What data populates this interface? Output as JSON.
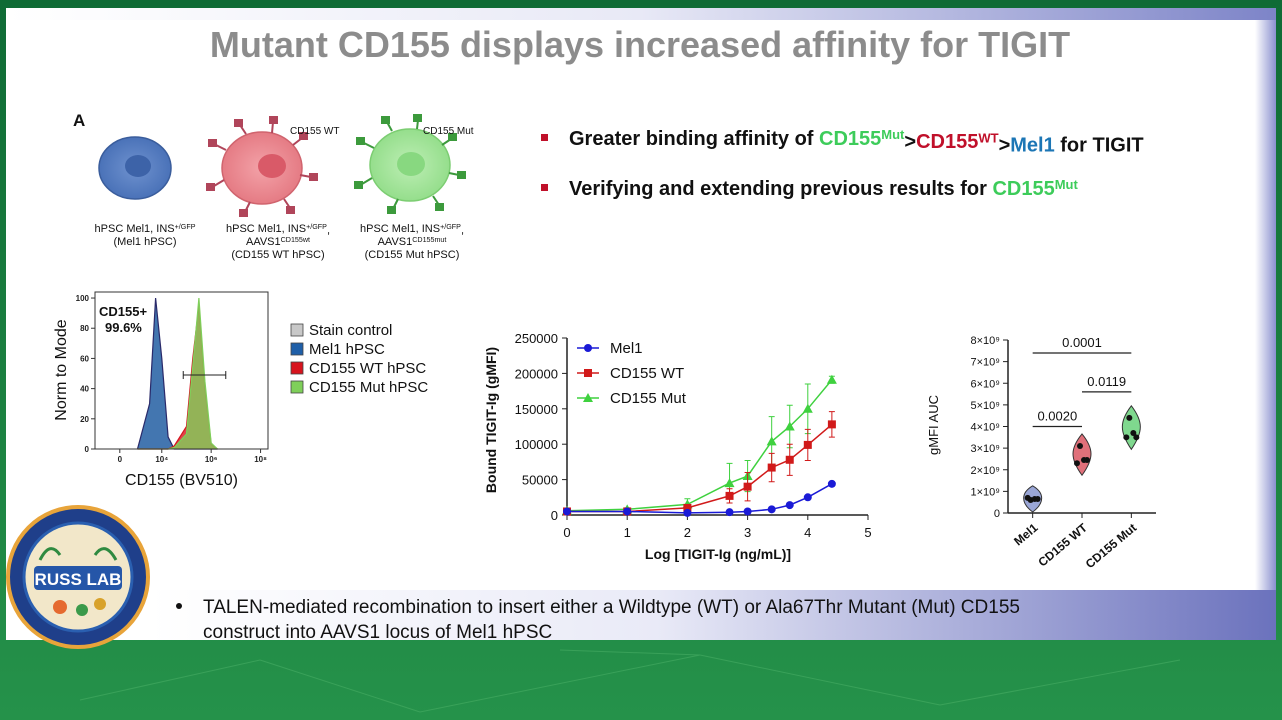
{
  "slide": {
    "title": "Mutant CD155 displays increased affinity for TIGIT",
    "panel_label": "A",
    "cells": [
      {
        "lines": [
          [
            {
              "text": "hPSC Mel1, INS"
            },
            {
              "text": "+/GFP",
              "sup": true
            }
          ],
          [
            {
              "text": "(Mel1 hPSC)"
            }
          ]
        ]
      },
      {
        "callout": "CD155 WT",
        "lines": [
          [
            {
              "text": "hPSC Mel1, INS"
            },
            {
              "text": "+/GFP",
              "sup": true
            },
            {
              "text": ","
            }
          ],
          [
            {
              "text": "AAVS1"
            },
            {
              "text": "CD155wt",
              "sup": true
            }
          ],
          [
            {
              "text": "(CD155 WT hPSC)"
            }
          ]
        ]
      },
      {
        "callout": "CD155 Mut",
        "lines": [
          [
            {
              "text": "hPSC Mel1, INS"
            },
            {
              "text": "+/GFP",
              "sup": true
            },
            {
              "text": ","
            }
          ],
          [
            {
              "text": "AAVS1"
            },
            {
              "text": "CD155mut",
              "sup": true
            }
          ],
          [
            {
              "text": "(CD155 Mut hPSC)"
            }
          ]
        ]
      }
    ],
    "bullets": [
      [
        {
          "text": "Greater binding affinity of "
        },
        {
          "text": "CD155",
          "color": "#3dcc5a"
        },
        {
          "text": "Mut",
          "sup": true,
          "color": "#3dcc5a"
        },
        {
          "text": ">"
        },
        {
          "text": "CD155",
          "color": "#c0102a"
        },
        {
          "text": "WT",
          "sup": true,
          "color": "#c0102a"
        },
        {
          "text": ">"
        },
        {
          "text": "Mel1",
          "color": "#1c76b5"
        },
        {
          "text": " for TIGIT"
        }
      ],
      [
        {
          "text": "Verifying and extending previous results for "
        },
        {
          "text": "CD155",
          "color": "#3dcc5a"
        },
        {
          "text": "Mut",
          "sup": true,
          "color": "#3dcc5a"
        }
      ]
    ],
    "footnote": [
      "TALEN-mediated recombination to insert either a Wildtype (WT) or Ala67Thr Mutant (Mut) CD155",
      "construct into AAVS1 locus of Mel1 hPSC"
    ],
    "logo": "RUSS LAB"
  },
  "chart_data": [
    {
      "type": "density",
      "ylabel": "Norm to Mode",
      "xlabel": "CD155 (BV510)",
      "annotations": [
        "CD155+",
        "99.6%"
      ],
      "xlim": [
        -2000,
        200000000
      ],
      "ylim": [
        0,
        104
      ],
      "xticks": [
        0,
        {
          "value": 10000,
          "label": "10⁴"
        },
        {
          "value": 1000000,
          "label": "10⁶"
        },
        {
          "value": 100000000,
          "label": "10⁸"
        }
      ],
      "yticks": [
        0,
        20,
        40,
        60,
        80,
        100
      ],
      "gate": {
        "x": [
          74000,
          3900000
        ],
        "y": 49
      },
      "x": [
        1000,
        3200,
        5600,
        10000,
        18000,
        32000,
        100000,
        180000,
        320000,
        560000,
        1000000,
        1800000
      ],
      "series": [
        {
          "name": "Stain control",
          "color": "#c8c8c8",
          "values": [
            0,
            28,
            95,
            55,
            6,
            0,
            0,
            0,
            0,
            0,
            0,
            0
          ]
        },
        {
          "name": "Mel1 hPSC",
          "color": "#1f5fa8",
          "values": [
            0,
            30,
            100,
            60,
            8,
            0,
            0,
            0,
            0,
            0,
            0,
            0
          ]
        },
        {
          "name": "CD155 WT hPSC",
          "color": "#d7141e",
          "values": [
            0,
            0,
            0,
            0,
            0,
            2,
            15,
            60,
            95,
            40,
            3,
            0
          ]
        },
        {
          "name": "CD155 Mut hPSC",
          "color": "#7fcf5a",
          "values": [
            0,
            0,
            0,
            0,
            0,
            1,
            10,
            55,
            100,
            45,
            4,
            0
          ]
        }
      ]
    },
    {
      "type": "line",
      "ylabel": "Bound TIGIT-Ig (gMFI)",
      "xlabel": "Log [TIGIT-Ig (ng/mL)]",
      "xlim": [
        0,
        5
      ],
      "ylim": [
        0,
        250000
      ],
      "xticks": [
        0,
        1,
        2,
        3,
        4,
        5
      ],
      "yticks": [
        0,
        50000,
        100000,
        150000,
        200000,
        250000
      ],
      "x": [
        0,
        1,
        2,
        2.7,
        3,
        3.4,
        3.7,
        4,
        4.4
      ],
      "series": [
        {
          "name": "Mel1",
          "color": "#1a1ad6",
          "marker": "circle",
          "values": [
            5000,
            5000,
            3000,
            4000,
            5000,
            8000,
            14000,
            25000,
            44000
          ],
          "errors": [
            500,
            500,
            500,
            800,
            800,
            1000,
            1500,
            2000,
            2500
          ]
        },
        {
          "name": "CD155 WT",
          "color": "#d11a1a",
          "marker": "square",
          "values": [
            5000,
            5000,
            10000,
            27000,
            40000,
            67000,
            78000,
            99000,
            128000
          ],
          "errors": [
            1000,
            1500,
            3000,
            10000,
            20000,
            20000,
            22000,
            22000,
            18000
          ]
        },
        {
          "name": "CD155 Mut",
          "color": "#3fd13f",
          "marker": "triangle",
          "values": [
            6000,
            8000,
            15000,
            45000,
            55000,
            104000,
            125000,
            150000,
            191000
          ],
          "errors": [
            1000,
            2000,
            8000,
            28000,
            22000,
            35000,
            30000,
            35000,
            5000
          ]
        }
      ]
    },
    {
      "type": "violin",
      "ylabel": "gMFI AUC",
      "ylim": [
        0,
        8000000000
      ],
      "yticks": [
        0,
        {
          "value": 1000000000,
          "label": "1×10⁹"
        },
        {
          "value": 2000000000,
          "label": "2×10⁹"
        },
        {
          "value": 3000000000,
          "label": "3×10⁹"
        },
        {
          "value": 4000000000,
          "label": "4×10⁹"
        },
        {
          "value": 5000000000,
          "label": "5×10⁹"
        },
        {
          "value": 6000000000,
          "label": "6×10⁹"
        },
        {
          "value": 7000000000,
          "label": "7×10⁹"
        },
        {
          "value": 8000000000,
          "label": "8×10⁹"
        }
      ],
      "categories": [
        "Mel1",
        "CD155 WT",
        "CD155 Mut"
      ],
      "series": [
        {
          "color": "#9aa6d6",
          "values": [
            600000000,
            650000000,
            700000000,
            650000000
          ]
        },
        {
          "color": "#e0707a",
          "values": [
            3100000000,
            2450000000,
            2300000000,
            2450000000
          ]
        },
        {
          "color": "#7fd88e",
          "values": [
            4400000000,
            3700000000,
            3500000000,
            3500000000
          ]
        }
      ],
      "comparisons": [
        {
          "label": "0.0020",
          "from": 0,
          "to": 1,
          "y": 4000000000
        },
        {
          "label": "0.0119",
          "from": 1,
          "to": 2,
          "y": 5600000000
        },
        {
          "label": "0.0001",
          "from": 0,
          "to": 2,
          "y": 7400000000
        }
      ]
    }
  ]
}
